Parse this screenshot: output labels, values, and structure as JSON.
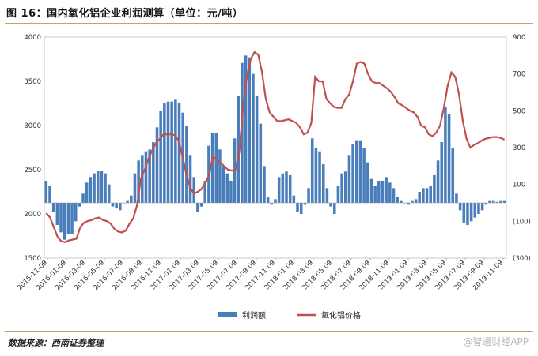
{
  "header": {
    "title": "图 16：国内氧化铝企业利润测算（单位：元/吨）"
  },
  "footer": {
    "source": "数据来源：西南证券整理",
    "watermark": "@智通财经APP"
  },
  "chart_data": {
    "type": "bar+line",
    "title": "图 16：国内氧化铝企业利润测算（单位：元/吨）",
    "left_axis": {
      "min": 1500,
      "max": 4000,
      "ticks": [
        "1500",
        "2000",
        "2500",
        "3000",
        "3500",
        "4000"
      ]
    },
    "right_axis": {
      "min": -300,
      "max": 900,
      "ticks": [
        "(300)",
        "(100)",
        "100",
        "300",
        "500",
        "700",
        "900"
      ]
    },
    "x_tick_labels": [
      "2015-11-09",
      "2016-01-09",
      "2016-03-09",
      "2016-05-09",
      "2016-07-09",
      "2016-09-09",
      "2016-11-09",
      "2017-01-09",
      "2017-03-09",
      "2017-05-09",
      "2017-07-09",
      "2017-09-09",
      "2017-11-09",
      "2018-01-09",
      "2018-03-09",
      "2018-05-09",
      "2018-07-09",
      "2018-09-09",
      "2018-11-09",
      "2019-01-09",
      "2019-03-09",
      "2019-05-09",
      "2019-07-09",
      "2019-09-09",
      "2019-11-09"
    ],
    "series": [
      {
        "name": "利润额",
        "axis": "right",
        "kind": "bar",
        "color": "#4a7ebb",
        "values": [
          120,
          90,
          -50,
          -120,
          -160,
          -200,
          -170,
          -170,
          -100,
          -20,
          50,
          110,
          140,
          160,
          175,
          175,
          160,
          100,
          -20,
          -30,
          -40,
          0,
          10,
          40,
          160,
          230,
          260,
          280,
          290,
          330,
          410,
          500,
          540,
          550,
          550,
          560,
          540,
          490,
          420,
          260,
          140,
          -50,
          -20,
          120,
          310,
          380,
          380,
          290,
          200,
          160,
          120,
          350,
          580,
          760,
          800,
          790,
          700,
          580,
          430,
          200,
          30,
          -10,
          20,
          140,
          160,
          170,
          150,
          40,
          -50,
          -60,
          -10,
          80,
          350,
          300,
          280,
          210,
          80,
          -20,
          -60,
          90,
          160,
          170,
          260,
          320,
          340,
          340,
          300,
          220,
          130,
          90,
          120,
          120,
          140,
          110,
          80,
          30,
          10,
          0,
          -10,
          10,
          20,
          60,
          80,
          80,
          90,
          150,
          230,
          330,
          520,
          480,
          300,
          50,
          -40,
          -110,
          -120,
          -100,
          -80,
          -60,
          -40,
          -10,
          10,
          10,
          5,
          10,
          10
        ]
      },
      {
        "name": "氧化铝价格",
        "axis": "left",
        "kind": "line",
        "color": "#c0504d",
        "values": [
          2010,
          1960,
          1850,
          1740,
          1690,
          1680,
          1700,
          1710,
          1720,
          1850,
          1900,
          1920,
          1930,
          1950,
          1960,
          1930,
          1920,
          1890,
          1830,
          1800,
          1790,
          1810,
          1890,
          1950,
          2100,
          2400,
          2500,
          2620,
          2720,
          2800,
          2850,
          2900,
          2900,
          2900,
          2890,
          2830,
          2650,
          2450,
          2300,
          2230,
          2250,
          2280,
          2350,
          2430,
          2650,
          2610,
          2580,
          2540,
          2500,
          2490,
          2500,
          2700,
          3200,
          3550,
          3750,
          3830,
          3800,
          3600,
          3300,
          3150,
          3100,
          3050,
          3050,
          3060,
          3070,
          3050,
          3030,
          2980,
          2900,
          2920,
          3030,
          3550,
          3500,
          3500,
          3300,
          3250,
          3210,
          3200,
          3200,
          3300,
          3350,
          3500,
          3700,
          3720,
          3700,
          3580,
          3500,
          3480,
          3480,
          3450,
          3420,
          3380,
          3320,
          3250,
          3230,
          3200,
          3170,
          3150,
          3100,
          3000,
          2980,
          2900,
          2880,
          2920,
          3000,
          3200,
          3450,
          3600,
          3550,
          3350,
          3050,
          2850,
          2750,
          2780,
          2800,
          2830,
          2850,
          2860,
          2870,
          2870,
          2860,
          2840
        ]
      }
    ]
  }
}
